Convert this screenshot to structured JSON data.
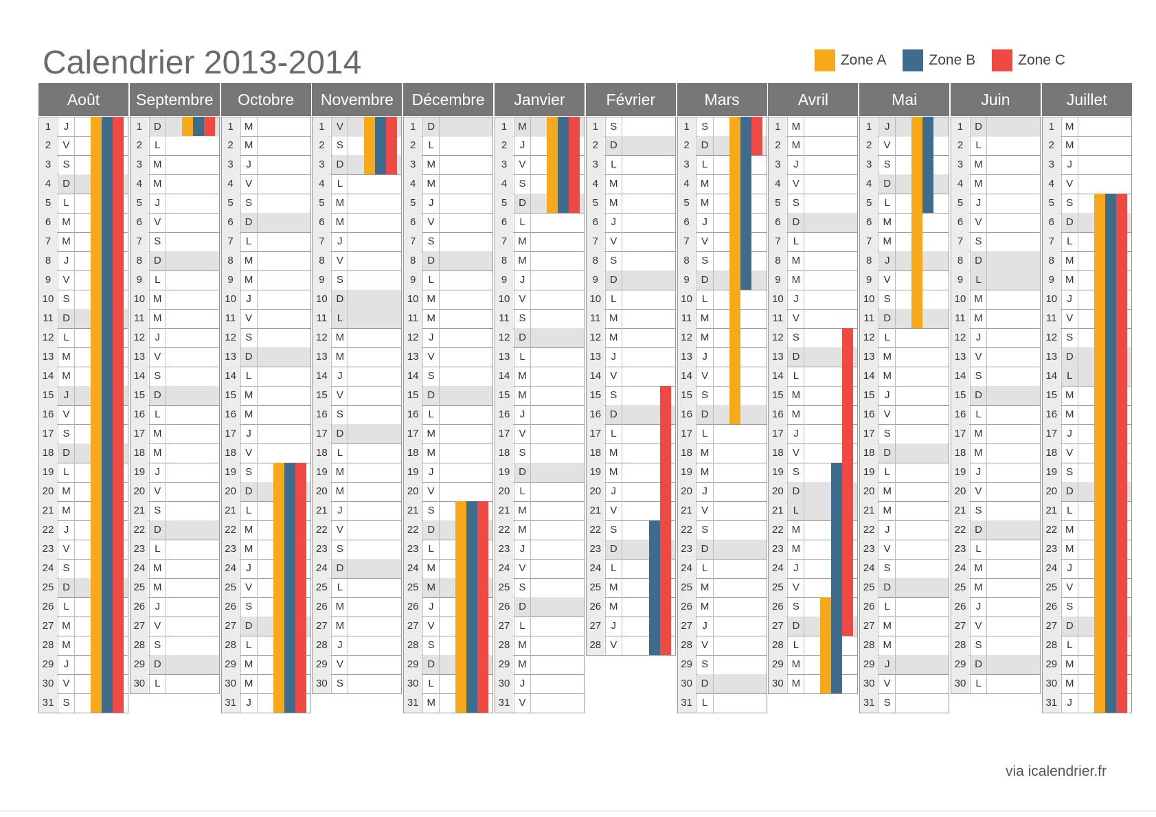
{
  "title": "Calendrier 2013-2014",
  "legend": [
    {
      "label": "Zone A",
      "color": "#F7A81B"
    },
    {
      "label": "Zone B",
      "color": "#3F6C8C"
    },
    {
      "label": "Zone C",
      "color": "#EF4944"
    }
  ],
  "footer": "via icalendrier.fr",
  "months": [
    {
      "name": "Août",
      "days": 31,
      "first_weekday": 4,
      "holidays": [
        15
      ],
      "zones": {
        "A": [
          [
            1,
            31
          ]
        ],
        "B": [
          [
            1,
            31
          ]
        ],
        "C": [
          [
            1,
            31
          ]
        ]
      }
    },
    {
      "name": "Septembre",
      "days": 30,
      "first_weekday": 0,
      "holidays": [],
      "zones": {
        "A": [
          [
            1,
            1
          ]
        ],
        "B": [
          [
            1,
            1
          ]
        ],
        "C": [
          [
            1,
            1
          ]
        ]
      }
    },
    {
      "name": "Octobre",
      "days": 31,
      "first_weekday": 2,
      "holidays": [],
      "zones": {
        "A": [
          [
            19,
            31
          ]
        ],
        "B": [
          [
            19,
            31
          ]
        ],
        "C": [
          [
            19,
            31
          ]
        ]
      }
    },
    {
      "name": "Novembre",
      "days": 30,
      "first_weekday": 5,
      "holidays": [
        1,
        11
      ],
      "zones": {
        "A": [
          [
            1,
            3
          ]
        ],
        "B": [
          [
            1,
            3
          ]
        ],
        "C": [
          [
            1,
            3
          ]
        ]
      }
    },
    {
      "name": "Décembre",
      "days": 31,
      "first_weekday": 0,
      "holidays": [
        25
      ],
      "zones": {
        "A": [
          [
            21,
            31
          ]
        ],
        "B": [
          [
            21,
            31
          ]
        ],
        "C": [
          [
            21,
            31
          ]
        ]
      }
    },
    {
      "name": "Janvier",
      "days": 31,
      "first_weekday": 3,
      "holidays": [
        1
      ],
      "zones": {
        "A": [
          [
            1,
            5
          ]
        ],
        "B": [
          [
            1,
            5
          ]
        ],
        "C": [
          [
            1,
            5
          ]
        ]
      }
    },
    {
      "name": "Février",
      "days": 28,
      "first_weekday": 6,
      "holidays": [],
      "zones": {
        "A": [],
        "B": [
          [
            22,
            28
          ]
        ],
        "C": [
          [
            15,
            28
          ]
        ]
      }
    },
    {
      "name": "Mars",
      "days": 31,
      "first_weekday": 6,
      "holidays": [],
      "zones": {
        "A": [
          [
            1,
            16
          ]
        ],
        "B": [
          [
            1,
            9
          ]
        ],
        "C": [
          [
            1,
            2
          ]
        ]
      }
    },
    {
      "name": "Avril",
      "days": 30,
      "first_weekday": 2,
      "holidays": [
        21
      ],
      "zones": {
        "A": [
          [
            26,
            30
          ]
        ],
        "B": [
          [
            19,
            30
          ]
        ],
        "C": [
          [
            12,
            27
          ]
        ]
      }
    },
    {
      "name": "Mai",
      "days": 31,
      "first_weekday": 4,
      "holidays": [
        1,
        8,
        29
      ],
      "zones": {
        "A": [
          [
            1,
            11
          ]
        ],
        "B": [
          [
            1,
            5
          ]
        ],
        "C": []
      }
    },
    {
      "name": "Juin",
      "days": 30,
      "first_weekday": 0,
      "holidays": [
        9
      ],
      "zones": {
        "A": [],
        "B": [],
        "C": []
      }
    },
    {
      "name": "Juillet",
      "days": 31,
      "first_weekday": 2,
      "holidays": [
        14
      ],
      "zones": {
        "A": [
          [
            5,
            31
          ]
        ],
        "B": [
          [
            5,
            31
          ]
        ],
        "C": [
          [
            5,
            31
          ]
        ]
      }
    }
  ],
  "day_letters": [
    "D",
    "L",
    "M",
    "M",
    "J",
    "V",
    "S"
  ]
}
